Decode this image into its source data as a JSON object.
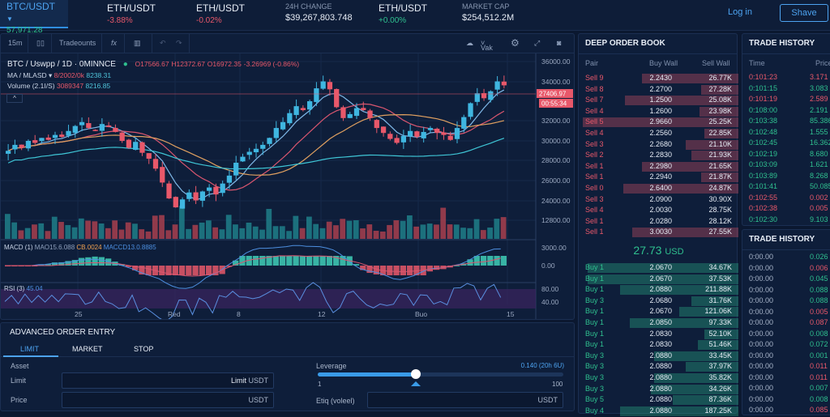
{
  "topbar": {
    "tickers": [
      {
        "pair": "BTC/USDT",
        "value": "57,971.28",
        "dir": "up"
      },
      {
        "pair": "ETH/USDT",
        "value": "-3.88%",
        "dir": "down"
      },
      {
        "pair": "ETH/USDT",
        "value": "-0.02%",
        "dir": "down"
      },
      {
        "pair": "ETH/USDT",
        "value": "+0.00%",
        "dir": "up"
      }
    ],
    "change_label": "24H CHANGE",
    "change_value": "$39,267,803.748",
    "cap_label": "MARKET CAP",
    "cap_value": "$254,512.2M",
    "login": "Log in",
    "signup": "Shave"
  },
  "toolbar": {
    "interval": "15m",
    "indicators": "Tradeounts",
    "fx": "fx",
    "view": "Vak"
  },
  "legend": {
    "title": "BTC / Uswpp / 1D · 0MINNCE",
    "o": "O17566.67",
    "h": "H12372.67",
    "c": "O16972.35",
    "chg": "-3.26969 (-0.86%)",
    "ma_label": "MA / MLASD ▾",
    "ma_v1": "8/2002/0k",
    "ma_v2": "8238.31",
    "vol_label": "Volume (2.1I/S)",
    "vol_v1": "3089347",
    "vol_v2": "8216.85"
  },
  "price_axis": [
    "36000.00",
    "34000.00",
    "32000.00",
    "30000.00",
    "28000.00",
    "26000.00",
    "24000.00",
    "12800.00"
  ],
  "price_tag": "27406.97",
  "time_tag": "00:55:34",
  "macd": {
    "label": "MACD (1)",
    "v1": "MAO15.6.088",
    "v2": "CB.0024",
    "v3": "MACCD13.0.8885",
    "axis": [
      "3000.00",
      "0.00"
    ]
  },
  "rsi": {
    "label": "RSI (3)",
    "value": "45.04",
    "axis": [
      "80.00",
      "40.00"
    ]
  },
  "x_axis": [
    "25",
    "Red",
    "8",
    "12",
    "Buo",
    "15"
  ],
  "chart_data": {
    "type": "candlestick",
    "closes": [
      27000,
      27600,
      27300,
      28000,
      27800,
      28300,
      28100,
      28600,
      28400,
      29000,
      29500,
      29900,
      29300,
      29000,
      29700,
      29400,
      28900,
      28000,
      27300,
      27900,
      26800,
      26200,
      25200,
      23800,
      22200,
      21300,
      22100,
      22800,
      22000,
      22900,
      23300,
      22600,
      23700,
      24500,
      25800,
      26400,
      26900,
      27200,
      27600,
      28300,
      29300,
      29900,
      30800,
      31500,
      31100,
      32000,
      33300,
      34000,
      33200,
      31400,
      30300,
      30700,
      31300,
      31100,
      30300,
      29300,
      28800,
      28200,
      27800,
      28500,
      29000,
      28400,
      28900,
      29300,
      28800,
      28600,
      28100,
      29300,
      30400,
      31800,
      32800,
      32300,
      33000,
      34000,
      33600
    ]
  },
  "order_book": {
    "title": "DEEP ORDER BOOK",
    "headers": [
      "Pair",
      "Buy Wall",
      "Sell Wall"
    ],
    "asks": [
      {
        "pair": "Sell 9",
        "buy": "2.2430",
        "sell": "26.77K",
        "depth": 0.62
      },
      {
        "pair": "Sell 8",
        "buy": "2.2700",
        "sell": "27.28K",
        "depth": 0.24
      },
      {
        "pair": "Sell 7",
        "buy": "1.2500",
        "sell": "25.08K",
        "depth": 0.73
      },
      {
        "pair": "Sell 4",
        "buy": "1.2600",
        "sell": "23.98K",
        "depth": 0.25
      },
      {
        "pair": "Sell 5",
        "buy": "2.9660",
        "sell": "25.25K",
        "depth": 1.0
      },
      {
        "pair": "Sell 4",
        "buy": "2.2560",
        "sell": "22.85K",
        "depth": 0.22
      },
      {
        "pair": "Sell 3",
        "buy": "2.2680",
        "sell": "21.10K",
        "depth": 0.34
      },
      {
        "pair": "Sell 2",
        "buy": "2.2830",
        "sell": "21.93K",
        "depth": 0.3
      },
      {
        "pair": "Sell 1",
        "buy": "2.2980",
        "sell": "21.65K",
        "depth": 0.62
      },
      {
        "pair": "Sell 1",
        "buy": "2.2940",
        "sell": "21.87K",
        "depth": 0.24
      },
      {
        "pair": "Sell 0",
        "buy": "2.6400",
        "sell": "24.87K",
        "depth": 0.74
      },
      {
        "pair": "Sell 3",
        "buy": "2.0900",
        "sell": "30.90X",
        "depth": 0.0
      },
      {
        "pair": "Sell 4",
        "buy": "2.0030",
        "sell": "28.75K",
        "depth": 0.0
      },
      {
        "pair": "Sell 1",
        "buy": "2.0280",
        "sell": "28.12K",
        "depth": 0.0
      },
      {
        "pair": "Sell 1",
        "buy": "3.0030",
        "sell": "27.55K",
        "depth": 0.68
      }
    ],
    "mid_price": "27.73",
    "mid_unit": "USD",
    "bids": [
      {
        "pair": "Buy 1",
        "buy": "2.0670",
        "sell": "34.67K",
        "depth": 0.97
      },
      {
        "pair": "Buy 1",
        "buy": "2.0670",
        "sell": "37.53K",
        "depth": 0.97
      },
      {
        "pair": "Buy 1",
        "buy": "2.0880",
        "sell": "211.88K",
        "depth": 0.76
      },
      {
        "pair": "Buy 3",
        "buy": "2.0680",
        "sell": "31.76K",
        "depth": 0.3
      },
      {
        "pair": "Buy 1",
        "buy": "2.0670",
        "sell": "121.06K",
        "depth": 0.38
      },
      {
        "pair": "Buy 1",
        "buy": "2.0850",
        "sell": "97.33K",
        "depth": 0.7
      },
      {
        "pair": "Buy 1",
        "buy": "2.0830",
        "sell": "52.10K",
        "depth": 0.22
      },
      {
        "pair": "Buy 1",
        "buy": "2.0830",
        "sell": "51.46K",
        "depth": 0.26
      },
      {
        "pair": "Buy 3",
        "buy": "2.0880",
        "sell": "33.45K",
        "depth": 0.54
      },
      {
        "pair": "Buy 3",
        "buy": "2.0880",
        "sell": "37.97K",
        "depth": 0.34
      },
      {
        "pair": "Buy 3",
        "buy": "2.0880",
        "sell": "35.82K",
        "depth": 0.54
      },
      {
        "pair": "Buy 3",
        "buy": "2.0880",
        "sell": "34.26K",
        "depth": 0.56
      },
      {
        "pair": "Buy 5",
        "buy": "2.0880",
        "sell": "87.36K",
        "depth": 0.42
      },
      {
        "pair": "Buy 4",
        "buy": "2.0880",
        "sell": "187.25K",
        "depth": 0.76
      }
    ]
  },
  "trade_history": {
    "title": "TRADE HISTORY",
    "headers": [
      "Time",
      "Price"
    ],
    "rows": [
      {
        "t": "0:101:23",
        "p": "3.171",
        "s": "down"
      },
      {
        "t": "0:101:15",
        "p": "3.083",
        "s": "up"
      },
      {
        "t": "0:101:19",
        "p": "2.589",
        "s": "down"
      },
      {
        "t": "0:108:00",
        "p": "2.191",
        "s": "up"
      },
      {
        "t": "0:103:38",
        "p": "85.386",
        "s": "up"
      },
      {
        "t": "0:102:48",
        "p": "1.555",
        "s": "up"
      },
      {
        "t": "0:102:45",
        "p": "16.362",
        "s": "up"
      },
      {
        "t": "0:102:19",
        "p": "8.680",
        "s": "up"
      },
      {
        "t": "0:103:09",
        "p": "1.621",
        "s": "up"
      },
      {
        "t": "0:103:89",
        "p": "8.268",
        "s": "up"
      },
      {
        "t": "0:101:41",
        "p": "50.085",
        "s": "up"
      },
      {
        "t": "0:102:55",
        "p": "0.002",
        "s": "down"
      },
      {
        "t": "0:102:38",
        "p": "0.005",
        "s": "down"
      },
      {
        "t": "0:102:30",
        "p": "9.103",
        "s": "up"
      }
    ]
  },
  "trade_history_2": {
    "title": "TRADE HISTORY",
    "rows": [
      {
        "t": "0:00.00",
        "p": "0.026",
        "s": "up"
      },
      {
        "t": "0:00.00",
        "p": "0.006",
        "s": "down"
      },
      {
        "t": "0:00.00",
        "p": "0.045",
        "s": "up"
      },
      {
        "t": "0:00.00",
        "p": "0.088",
        "s": "up"
      },
      {
        "t": "0:00.00",
        "p": "0.088",
        "s": "up"
      },
      {
        "t": "0:00.00",
        "p": "0.005",
        "s": "down"
      },
      {
        "t": "0:00.00",
        "p": "0.087",
        "s": "down"
      },
      {
        "t": "0:00.00",
        "p": "0.008",
        "s": "up"
      },
      {
        "t": "0:00.00",
        "p": "0.072",
        "s": "up"
      },
      {
        "t": "0:00.00",
        "p": "0.001",
        "s": "up"
      },
      {
        "t": "0:00.00",
        "p": "0.011",
        "s": "down"
      },
      {
        "t": "0:00.00",
        "p": "0.011",
        "s": "down"
      },
      {
        "t": "0:00.00",
        "p": "0.007",
        "s": "up"
      },
      {
        "t": "0:00.00",
        "p": "0.008",
        "s": "up"
      },
      {
        "t": "0:00.00",
        "p": "0.085",
        "s": "down"
      }
    ]
  },
  "order_entry": {
    "title": "ADVANCED ORDER ENTRY",
    "tabs": [
      "LIMIT",
      "MARKET",
      "STOP"
    ],
    "asset_label": "Asset",
    "limit_label": "Limit",
    "limit_value": "Limit",
    "unit": "USDT",
    "price_label": "Price",
    "leverage_label": "Leverage",
    "leverage_info": "0.140 (20h 6U)",
    "leverage_min": "1",
    "leverage_max": "100",
    "leverage_fraction": 0.4,
    "etiq_label": "Etiq (voleel)"
  },
  "colors": {
    "up": "#2fc08f",
    "down": "#e8586a",
    "accent": "#4da3f0",
    "bg": "#0b1830"
  }
}
